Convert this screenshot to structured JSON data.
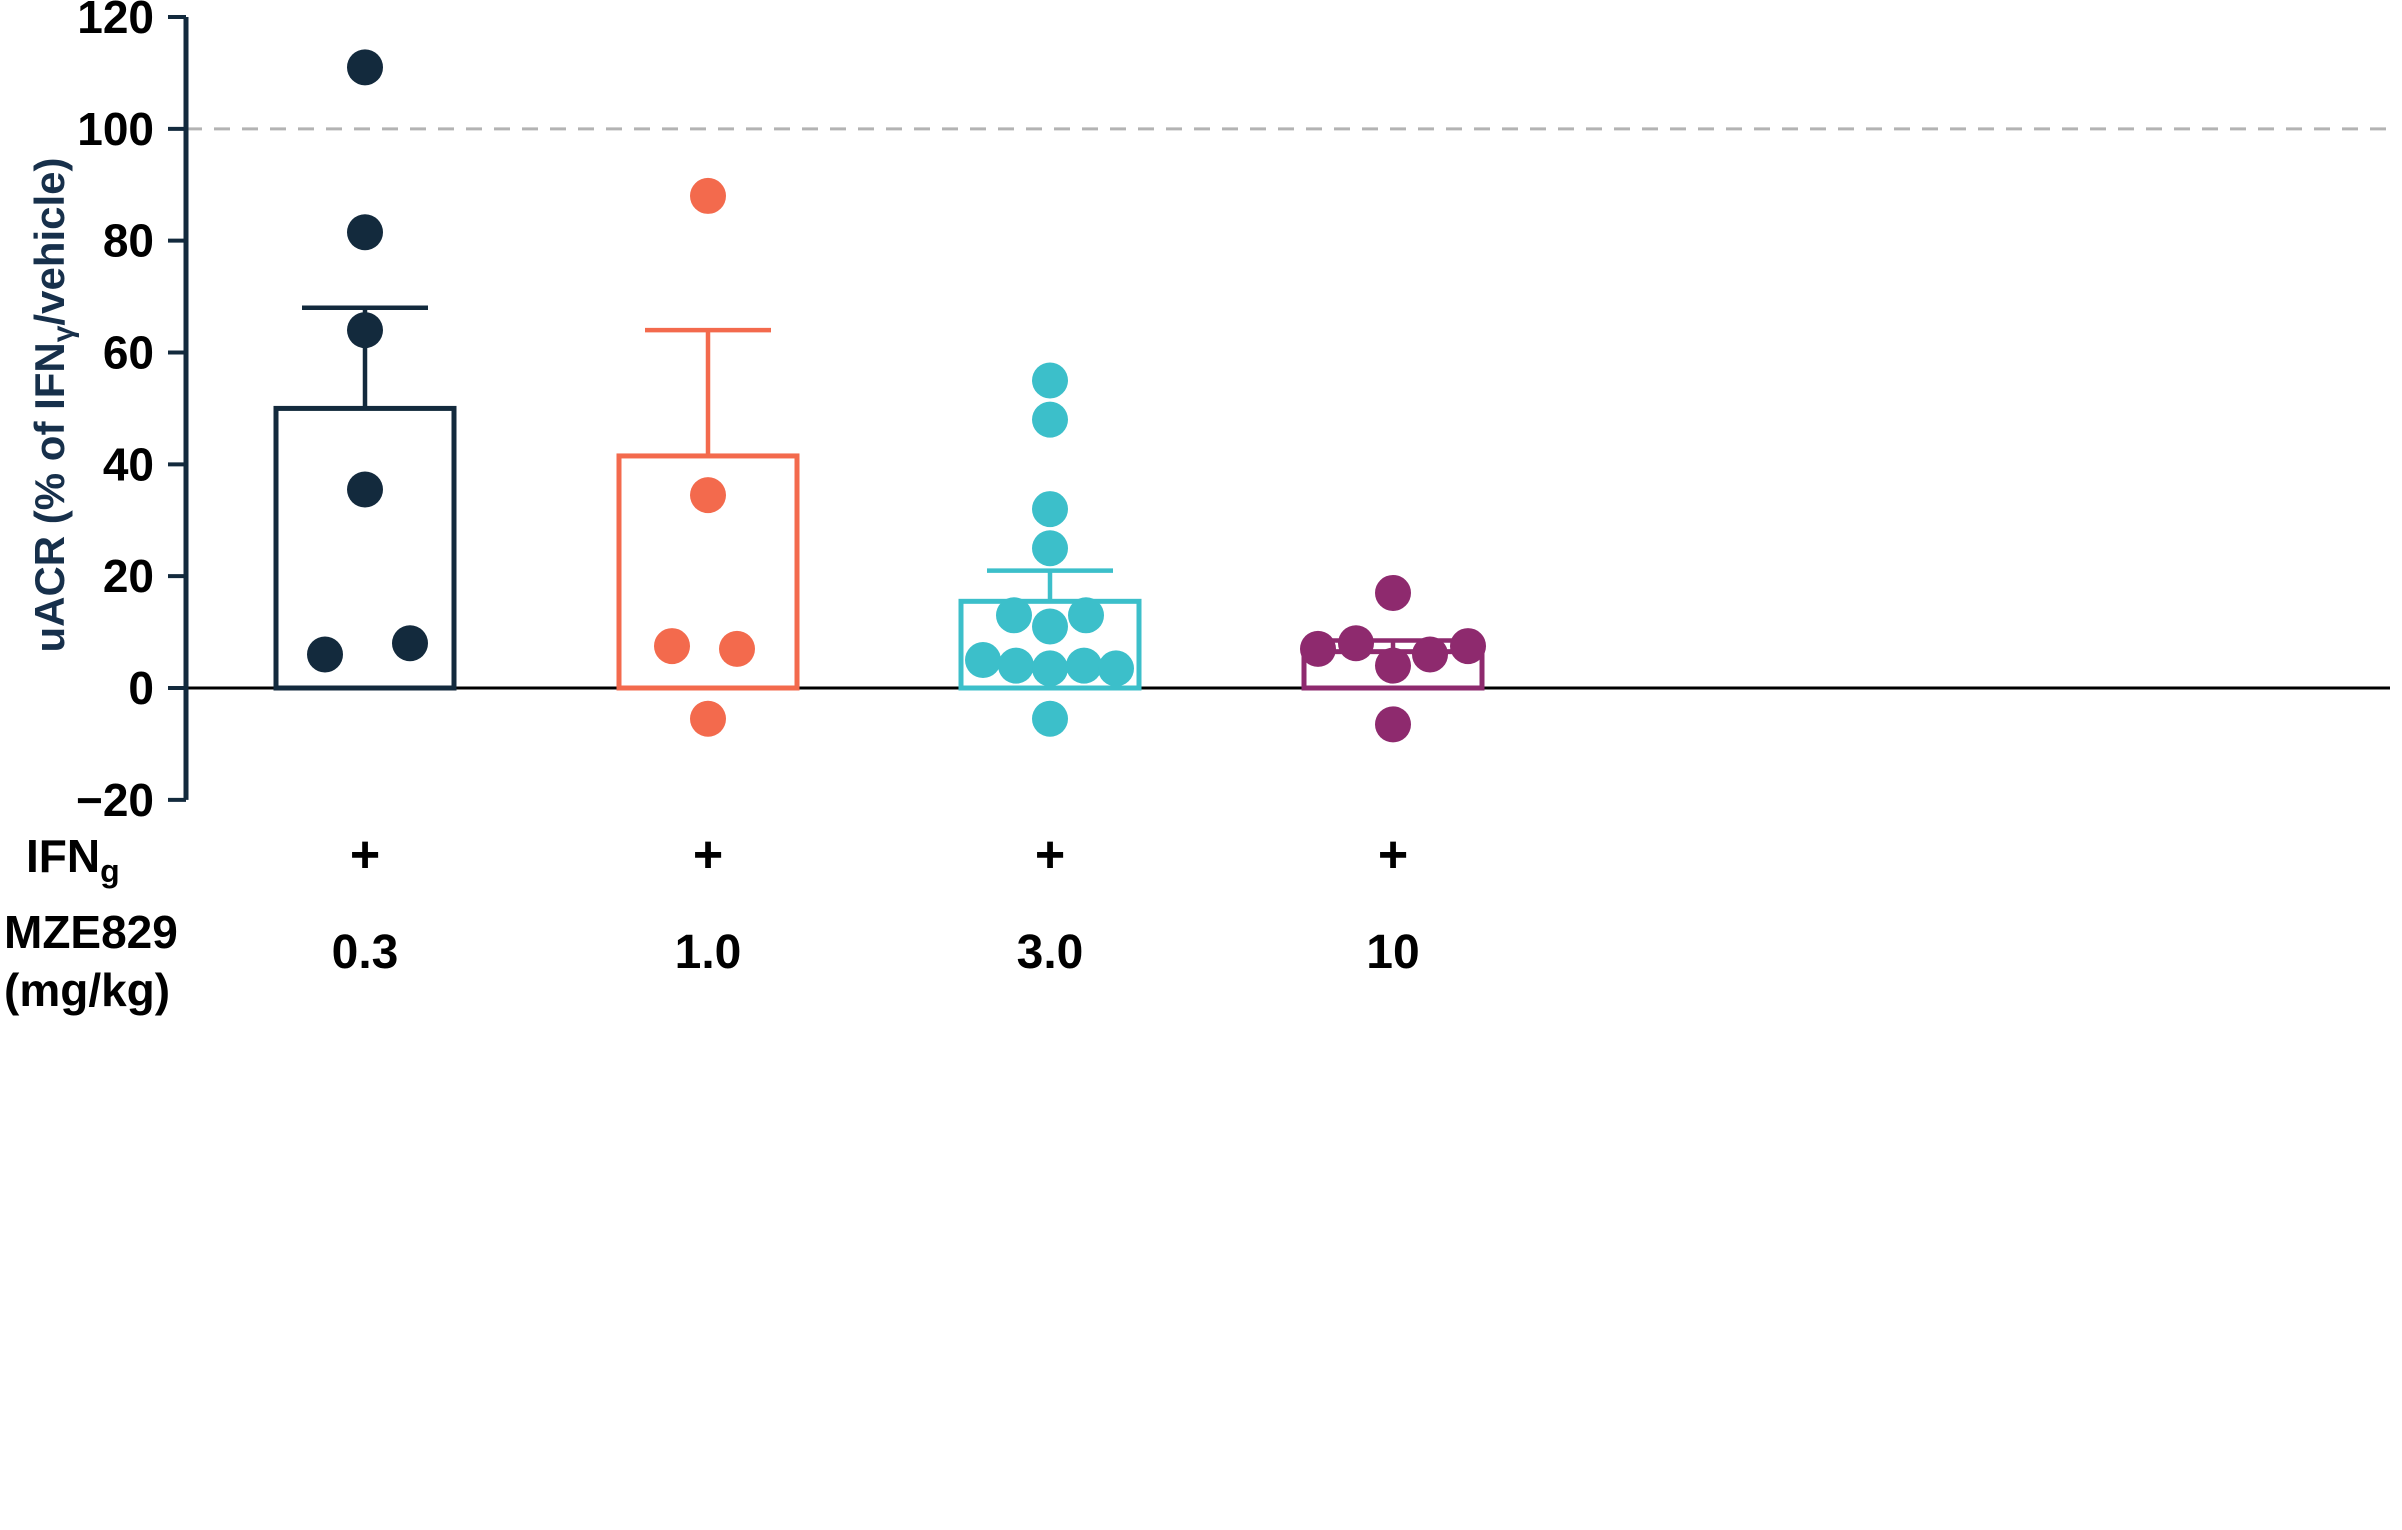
{
  "chart_data": {
    "type": "bar",
    "title": "",
    "ylabel": "uACR (% of IFNγ/vehicle)",
    "ylabel_parts": {
      "pre": "uACR (% of IFN",
      "sub": "γ",
      "post": "/vehicle)"
    },
    "ylim": [
      -20,
      120
    ],
    "yticks": [
      -20,
      0,
      20,
      40,
      60,
      80,
      100,
      120
    ],
    "reference_line_y": 100,
    "baseline_y": 0,
    "grid": false,
    "legend": false,
    "x_row_labels": {
      "ifn_pre": "IFN",
      "ifn_sub": "g",
      "drug_line1": "MZE829",
      "drug_line2": "(mg/kg)"
    },
    "colors": {
      "axis": "#132a3d",
      "reference_line": "#b3b3b3",
      "zero_line": "#000000",
      "label_text": "#000000",
      "ylabel_text": "#17304b"
    },
    "groups": [
      {
        "dose": "0.3",
        "ifn": "+",
        "color": "#132a3d",
        "bar_mean": 50,
        "error_top": 68,
        "points": [
          {
            "dx": 0,
            "v": 111
          },
          {
            "dx": 0,
            "v": 81.5
          },
          {
            "dx": 0,
            "v": 64
          },
          {
            "dx": 0,
            "v": 35.5
          },
          {
            "dx": -40,
            "v": 6
          },
          {
            "dx": 45,
            "v": 8
          }
        ]
      },
      {
        "dose": "1.0",
        "ifn": "+",
        "color": "#f36a4d",
        "bar_mean": 41.5,
        "error_top": 64,
        "points": [
          {
            "dx": 0,
            "v": 88
          },
          {
            "dx": 0,
            "v": 34.5
          },
          {
            "dx": -36,
            "v": 7.5
          },
          {
            "dx": 29,
            "v": 7
          },
          {
            "dx": 0,
            "v": -5.5
          }
        ]
      },
      {
        "dose": "3.0",
        "ifn": "+",
        "color": "#3cbfca",
        "bar_mean": 15.5,
        "error_top": 21,
        "points": [
          {
            "dx": 0,
            "v": 55
          },
          {
            "dx": 0,
            "v": 48
          },
          {
            "dx": 0,
            "v": 32
          },
          {
            "dx": 0,
            "v": 25
          },
          {
            "dx": -36,
            "v": 13
          },
          {
            "dx": 36,
            "v": 13
          },
          {
            "dx": 0,
            "v": 11
          },
          {
            "dx": -67,
            "v": 5
          },
          {
            "dx": -34,
            "v": 4
          },
          {
            "dx": 0,
            "v": 3.5
          },
          {
            "dx": 34,
            "v": 4
          },
          {
            "dx": 66,
            "v": 3.5
          },
          {
            "dx": 0,
            "v": -5.5
          }
        ]
      },
      {
        "dose": "10",
        "ifn": "+",
        "color": "#8e2a6e",
        "bar_mean": 6.5,
        "error_top": 8.5,
        "points": [
          {
            "dx": 0,
            "v": 17
          },
          {
            "dx": -75,
            "v": 7
          },
          {
            "dx": -37,
            "v": 8
          },
          {
            "dx": 37,
            "v": 6
          },
          {
            "dx": 75,
            "v": 7.5
          },
          {
            "dx": 0,
            "v": 4
          },
          {
            "dx": 0,
            "v": -6.5
          }
        ]
      }
    ]
  }
}
